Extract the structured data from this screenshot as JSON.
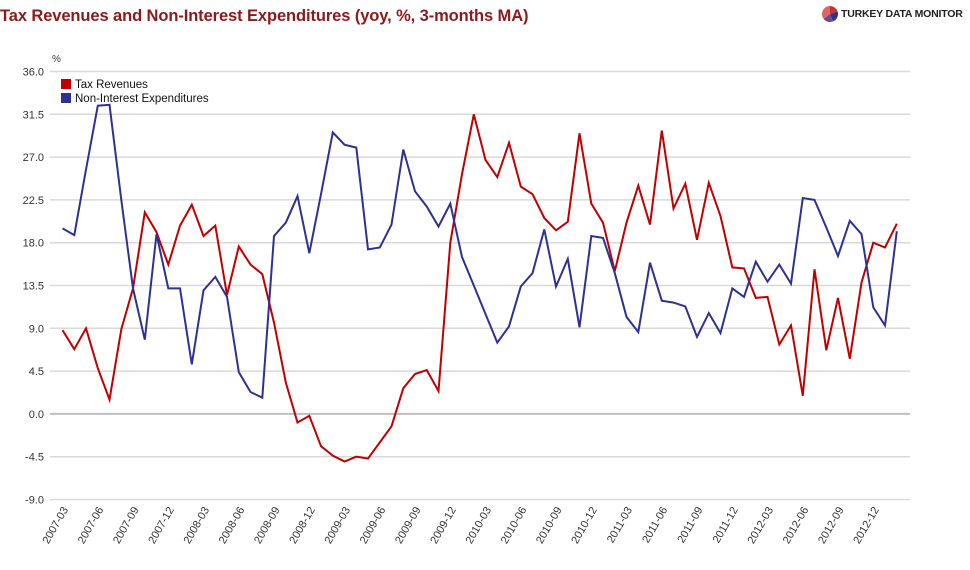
{
  "header": {
    "title": "Tax Revenues and Non-Interest Expenditures (yoy, %, 3-months MA)",
    "brand": "TURKEY DATA MONITOR"
  },
  "chart_data": {
    "type": "line",
    "title": "Tax Revenues and Non-Interest Expenditures (yoy, %, 3-months MA)",
    "xlabel": "",
    "ylabel": "%",
    "ylim": [
      -9.0,
      36.0
    ],
    "y_ticks": [
      "36.0",
      "31.5",
      "27.0",
      "22.5",
      "18.0",
      "13.5",
      "9.0",
      "4.5",
      "0.0",
      "-4.5",
      "-9.0"
    ],
    "y_tick_values": [
      36.0,
      31.5,
      27.0,
      22.5,
      18.0,
      13.5,
      9.0,
      4.5,
      0.0,
      -4.5,
      -9.0
    ],
    "grid": true,
    "legend_position": "top-left",
    "x_start": "2007-03",
    "x_end": "2013-02",
    "x_tick_labels": [
      "2007-03",
      "2007-06",
      "2007-09",
      "2007-12",
      "2008-03",
      "2008-06",
      "2008-09",
      "2008-12",
      "2009-03",
      "2009-06",
      "2009-09",
      "2009-12",
      "2010-03",
      "2010-06",
      "2010-09",
      "2010-12",
      "2011-03",
      "2011-06",
      "2011-09",
      "2011-12",
      "2012-03",
      "2012-06",
      "2012-09",
      "2012-12"
    ],
    "series": [
      {
        "name": "Tax Revenues",
        "color": "#c00000",
        "values": [
          8.8,
          6.8,
          9.0,
          4.8,
          1.5,
          8.9,
          13.2,
          21.2,
          19.1,
          15.7,
          19.8,
          22.0,
          18.7,
          19.8,
          12.5,
          17.6,
          15.7,
          14.7,
          9.6,
          3.3,
          -0.9,
          -0.2,
          -3.4,
          -4.4,
          -5.0,
          -4.5,
          -4.7,
          -3.0,
          -1.3,
          2.7,
          4.2,
          4.6,
          2.4,
          18.0,
          25.2,
          31.5,
          26.7,
          24.9,
          28.5,
          23.9,
          23.1,
          20.6,
          19.3,
          20.2,
          29.5,
          22.1,
          20.1,
          15.0,
          20.1,
          24.0,
          19.9,
          29.8,
          21.6,
          24.2,
          18.3,
          24.3,
          20.8,
          15.4,
          15.3,
          12.2,
          12.3,
          7.3,
          9.3,
          1.9,
          15.2,
          6.7,
          12.2,
          5.8,
          13.8,
          18.0,
          17.5,
          20.0
        ]
      },
      {
        "name": "Non-Interest Expenditures",
        "color": "#2e3192",
        "values": [
          19.5,
          18.8,
          25.7,
          32.4,
          32.5,
          22.5,
          13.2,
          7.8,
          18.9,
          13.2,
          13.2,
          5.2,
          13.0,
          14.4,
          12.3,
          4.4,
          2.3,
          1.7,
          18.7,
          20.1,
          22.9,
          16.9,
          23.1,
          29.6,
          28.3,
          28.0,
          17.3,
          17.5,
          19.9,
          27.8,
          23.4,
          21.8,
          19.7,
          22.1,
          16.5,
          13.5,
          10.5,
          7.5,
          9.2,
          13.4,
          14.8,
          19.4,
          13.4,
          16.3,
          9.1,
          18.7,
          18.5,
          14.8,
          10.2,
          8.6,
          15.9,
          11.9,
          11.7,
          11.3,
          8.1,
          10.6,
          8.5,
          13.2,
          12.3,
          16.0,
          13.9,
          15.7,
          13.7,
          22.7,
          22.5,
          19.6,
          16.6,
          20.3,
          18.9,
          11.2,
          9.3,
          19.2
        ]
      }
    ]
  },
  "colors": {
    "title": "#8b1a1a",
    "grid": "#d9d9d9",
    "zero_line": "#bfbfbf"
  }
}
